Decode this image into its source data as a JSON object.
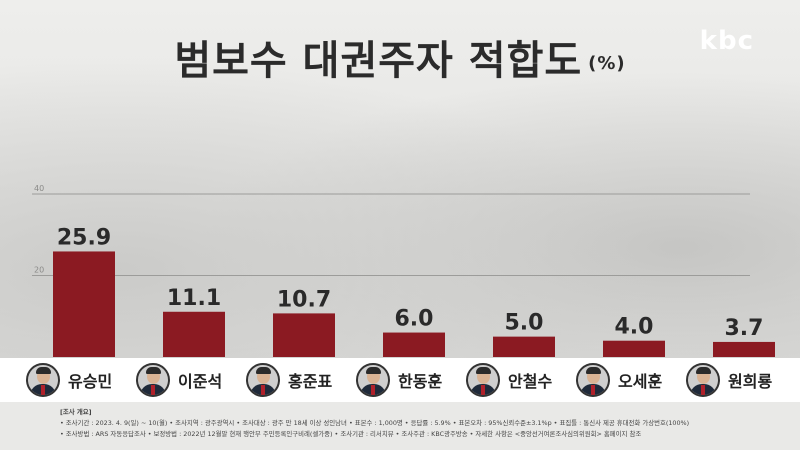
{
  "title": "범보수 대권주자 적합도",
  "unit": "(%)",
  "logo": "kbc",
  "chart_data": {
    "type": "bar",
    "categories": [
      "유승민",
      "이준석",
      "홍준표",
      "한동훈",
      "안철수",
      "오세훈",
      "원희룡"
    ],
    "values": [
      25.9,
      11.1,
      10.7,
      6.0,
      5.0,
      4.0,
      3.7
    ],
    "value_labels": [
      "25.9",
      "11.1",
      "10.7",
      "6.0",
      "5.0",
      "4.0",
      "3.7"
    ],
    "y_ticks": [
      20,
      40
    ],
    "y_tick_labels": [
      "20",
      "40"
    ],
    "ylim": [
      0,
      40
    ],
    "grid": true,
    "bar_color": "#8b1a22"
  },
  "footer": {
    "heading": "[조사 개요]",
    "line1": "• 조사기간 : 2023. 4. 9(일) ~ 10(월)   • 조사지역 : 광주광역시   • 조사대상 : 광주 만 18세 이상 성인남녀   • 표본수 : 1,000명   • 응답률 : 5.9%   • 표본오차 : 95%신뢰수준±3.1%p   • 표집틀 : 통신사 제공 휴대전화 가상번호(100%)",
    "line2": "• 조사방법 : ARS 자동응답조사   • 보정방법 : 2022년 12월말 현재 행안부 주민등록인구비례(셀가중)   • 조사기관 : 리서치뷰   • 조사주관 : KBC광주방송   • 자세한 사항은 <중앙선거여론조사심의위원회> 홈페이지 참조"
  }
}
